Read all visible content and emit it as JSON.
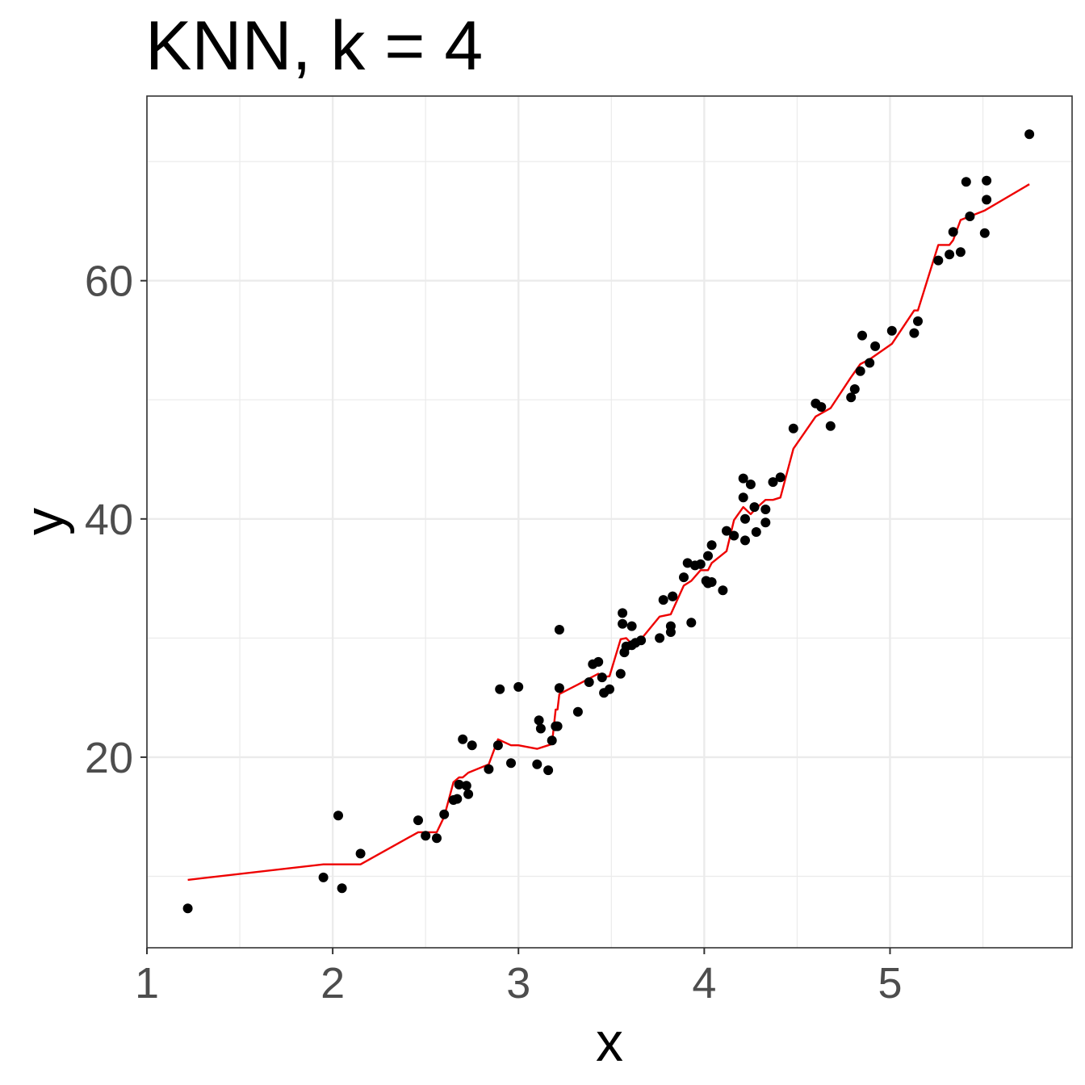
{
  "chart_data": {
    "type": "scatter",
    "title": "KNN, k =  4",
    "xlabel": "x",
    "ylabel": "y",
    "xlim": [
      1.0,
      5.98
    ],
    "ylim": [
      4.0,
      75.5
    ],
    "x_ticks": [
      {
        "value": 1,
        "label": "1"
      },
      {
        "value": 2,
        "label": "2"
      },
      {
        "value": 3,
        "label": "3"
      },
      {
        "value": 4,
        "label": "4"
      },
      {
        "value": 5,
        "label": "5"
      }
    ],
    "y_ticks": [
      {
        "value": 20,
        "label": "20"
      },
      {
        "value": 40,
        "label": "40"
      },
      {
        "value": 60,
        "label": "60"
      }
    ],
    "x_minor_grid": [
      1.5,
      2.5,
      3.5,
      4.5,
      5.5
    ],
    "y_minor_grid": [
      10,
      30,
      50,
      70
    ],
    "grid": true,
    "legend": "none",
    "colors": {
      "points": "#000000",
      "fit_line": "#ee0000",
      "grid": "#ebebeb",
      "border": "#333333"
    },
    "series": [
      {
        "kind": "points",
        "x": [
          1.22,
          1.95,
          2.03,
          2.05,
          2.15,
          2.46,
          2.5,
          2.56,
          2.6,
          2.65,
          2.67,
          2.68,
          2.7,
          2.72,
          2.73,
          2.75,
          2.84,
          2.89,
          2.9,
          2.96,
          3.0,
          3.1,
          3.11,
          3.12,
          3.16,
          3.18,
          3.2,
          3.21,
          3.22,
          3.22,
          3.32,
          3.38,
          3.4,
          3.43,
          3.45,
          3.46,
          3.49,
          3.55,
          3.56,
          3.56,
          3.57,
          3.58,
          3.61,
          3.61,
          3.63,
          3.66,
          3.76,
          3.78,
          3.82,
          3.82,
          3.83,
          3.83,
          3.89,
          3.91,
          3.93,
          3.95,
          3.98,
          4.01,
          4.02,
          4.02,
          4.04,
          4.04,
          4.1,
          4.12,
          4.16,
          4.21,
          4.21,
          4.22,
          4.22,
          4.25,
          4.27,
          4.28,
          4.33,
          4.33,
          4.37,
          4.41,
          4.48,
          4.6,
          4.63,
          4.68,
          4.79,
          4.81,
          4.84,
          4.85,
          4.89,
          4.92,
          5.01,
          5.13,
          5.15,
          5.26,
          5.32,
          5.34,
          5.38,
          5.41,
          5.43,
          5.51,
          5.52,
          5.52,
          5.75
        ],
        "y": [
          7.3,
          9.9,
          15.1,
          9.0,
          11.9,
          14.7,
          13.4,
          13.2,
          15.2,
          16.4,
          16.5,
          17.7,
          21.5,
          17.6,
          16.9,
          21.0,
          19.0,
          21.0,
          25.7,
          19.5,
          25.9,
          19.4,
          23.1,
          22.4,
          18.9,
          21.4,
          22.6,
          22.6,
          30.7,
          25.8,
          23.8,
          26.3,
          27.8,
          28.0,
          26.7,
          25.4,
          25.7,
          27.0,
          32.1,
          31.2,
          28.8,
          29.3,
          31.0,
          29.4,
          29.6,
          29.8,
          30.0,
          33.2,
          31.0,
          30.5,
          33.5,
          33.5,
          35.1,
          36.3,
          31.3,
          36.1,
          36.2,
          34.8,
          36.9,
          34.6,
          37.8,
          34.7,
          34.0,
          39.0,
          38.6,
          43.4,
          41.8,
          40.0,
          38.2,
          42.9,
          41.0,
          38.9,
          39.7,
          40.8,
          43.1,
          43.5,
          47.6,
          49.7,
          49.4,
          47.8,
          50.2,
          50.9,
          52.4,
          55.4,
          53.1,
          54.5,
          55.8,
          55.6,
          56.6,
          61.7,
          62.2,
          64.1,
          62.4,
          68.3,
          65.4,
          64.0,
          66.8,
          68.4,
          72.3
        ]
      },
      {
        "kind": "line",
        "x": [
          1.22,
          1.95,
          2.15,
          2.46,
          2.5,
          2.56,
          2.6,
          2.65,
          2.68,
          2.7,
          2.73,
          2.84,
          2.89,
          2.96,
          3.0,
          3.1,
          3.16,
          3.18,
          3.2,
          3.21,
          3.22,
          3.32,
          3.38,
          3.43,
          3.45,
          3.49,
          3.55,
          3.58,
          3.61,
          3.66,
          3.76,
          3.82,
          3.89,
          3.93,
          3.98,
          4.02,
          4.04,
          4.12,
          4.16,
          4.21,
          4.25,
          4.28,
          4.33,
          4.37,
          4.41,
          4.48,
          4.6,
          4.68,
          4.79,
          4.84,
          4.89,
          5.01,
          5.13,
          5.15,
          5.26,
          5.32,
          5.34,
          5.38,
          5.43,
          5.51,
          5.75
        ],
        "y": [
          9.7,
          11.0,
          11.0,
          13.7,
          13.7,
          13.7,
          15.0,
          17.9,
          18.3,
          18.3,
          18.7,
          19.4,
          21.5,
          21.0,
          21.0,
          20.7,
          21.0,
          21.1,
          24.0,
          24.0,
          25.3,
          26.1,
          26.6,
          27.0,
          26.7,
          26.8,
          29.9,
          30.0,
          29.5,
          29.9,
          31.8,
          32.0,
          34.4,
          34.8,
          35.7,
          35.7,
          36.3,
          37.3,
          39.9,
          41.0,
          40.4,
          40.9,
          41.6,
          41.6,
          41.8,
          45.9,
          48.6,
          49.3,
          51.9,
          53.0,
          53.4,
          54.7,
          57.5,
          57.5,
          63.0,
          63.0,
          63.4,
          65.1,
          65.4,
          65.9,
          68.1
        ]
      }
    ]
  }
}
